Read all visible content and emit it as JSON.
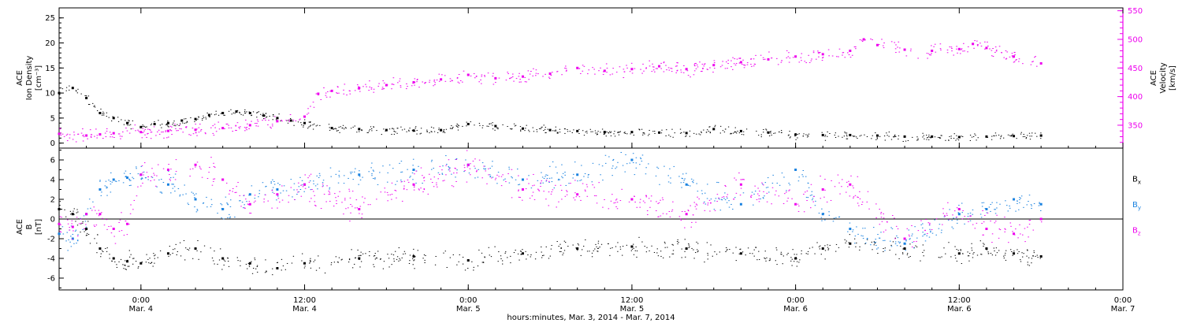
{
  "colors": {
    "density": "#000000",
    "velocity": "#ee00ee",
    "bx": "#000000",
    "by": "#1a82e0",
    "bz": "#ee00ee",
    "frame": "#000000",
    "velocity_axis": "#ee00ee"
  },
  "x_axis": {
    "title": "hours:minutes, Mar. 3, 2014 - Mar. 7, 2014",
    "range_hours": [
      -6,
      72
    ],
    "ticks": [
      {
        "hours": 0,
        "time": "0:00",
        "date": "Mar. 4"
      },
      {
        "hours": 12,
        "time": "12:00",
        "date": "Mar. 4"
      },
      {
        "hours": 24,
        "time": "0:00",
        "date": "Mar. 5"
      },
      {
        "hours": 36,
        "time": "12:00",
        "date": "Mar. 5"
      },
      {
        "hours": 48,
        "time": "0:00",
        "date": "Mar. 6"
      },
      {
        "hours": 60,
        "time": "12:00",
        "date": "Mar. 6"
      },
      {
        "hours": 72,
        "time": "0:00",
        "date": "Mar. 7"
      }
    ]
  },
  "chart_data": [
    {
      "type": "scatter",
      "panel": "plasma",
      "left_axis": {
        "label_lines": [
          "ACE",
          "Ion Density",
          "[cm⁻³]"
        ],
        "range": [
          -1,
          27
        ],
        "ticks": [
          0,
          5,
          10,
          15,
          20,
          25
        ]
      },
      "right_axis": {
        "label_lines": [
          "ACE",
          "Velocity",
          "[km/s]"
        ],
        "range": [
          310,
          555
        ],
        "ticks": [
          350,
          400,
          450,
          500,
          550
        ]
      },
      "series": [
        {
          "key": "density",
          "axis": "left",
          "x": [
            -6,
            -5,
            -4,
            -3,
            -2,
            -1,
            0,
            1,
            2,
            3,
            4,
            5,
            6,
            7,
            8,
            9,
            10,
            11,
            12,
            14,
            16,
            18,
            20,
            22,
            24,
            26,
            28,
            30,
            32,
            34,
            36,
            38,
            40,
            42,
            44,
            46,
            48,
            50,
            52,
            54,
            56,
            58,
            60,
            62,
            64,
            66
          ],
          "y": [
            10,
            11,
            9,
            6,
            5,
            4,
            3.2,
            3.8,
            4.0,
            4.5,
            4.8,
            5.6,
            6.0,
            6.3,
            6.0,
            5.5,
            5.0,
            4.5,
            4.0,
            3.0,
            2.8,
            2.6,
            2.5,
            2.6,
            3.8,
            3.4,
            2.9,
            2.6,
            2.4,
            2.2,
            2.2,
            2.1,
            2.0,
            2.8,
            2.4,
            2.1,
            1.7,
            1.6,
            1.6,
            1.5,
            1.3,
            1.3,
            1.2,
            1.3,
            1.4,
            1.5
          ]
        },
        {
          "key": "velocity",
          "axis": "right",
          "x": [
            -6,
            -4,
            -3,
            -2,
            0,
            2,
            4,
            6,
            8,
            10,
            12,
            13,
            14,
            16,
            18,
            20,
            22,
            24,
            26,
            28,
            30,
            32,
            34,
            36,
            38,
            40,
            42,
            44,
            46,
            48,
            50,
            52,
            53,
            54,
            56,
            58,
            60,
            61,
            62,
            64,
            66
          ],
          "y": [
            335,
            332,
            334,
            336,
            338,
            340,
            342,
            345,
            350,
            357,
            365,
            405,
            410,
            415,
            420,
            425,
            430,
            438,
            432,
            435,
            440,
            450,
            445,
            448,
            453,
            448,
            455,
            460,
            465,
            470,
            474,
            480,
            500,
            490,
            482,
            480,
            483,
            492,
            485,
            470,
            458
          ]
        }
      ]
    },
    {
      "type": "scatter",
      "panel": "magnetic field",
      "left_axis": {
        "label_lines": [
          "ACE",
          "B",
          "[nT]"
        ],
        "range": [
          -7.2,
          7.2
        ],
        "ticks": [
          -6,
          -4,
          -2,
          0,
          2,
          4,
          6
        ]
      },
      "legend": [
        "Bx",
        "By",
        "Bz"
      ],
      "series": [
        {
          "key": "bx",
          "x": [
            -6,
            -5,
            -4,
            -3,
            -2,
            -1,
            0,
            2,
            4,
            6,
            8,
            10,
            12,
            16,
            20,
            24,
            28,
            32,
            36,
            40,
            44,
            48,
            50,
            52,
            56,
            60,
            62,
            64,
            66
          ],
          "y": [
            1.0,
            0.5,
            -1.0,
            -3.0,
            -4.0,
            -4.3,
            -4.5,
            -3.5,
            -3.0,
            -4.0,
            -4.5,
            -5.0,
            -4.5,
            -4.0,
            -3.8,
            -4.2,
            -3.5,
            -3.0,
            -2.8,
            -3.0,
            -3.5,
            -4.0,
            -3.0,
            -2.5,
            -3.0,
            -3.5,
            -3.0,
            -3.5,
            -3.8
          ]
        },
        {
          "key": "by",
          "x": [
            -6,
            -5,
            -4,
            -3,
            -2,
            -1,
            0,
            2,
            4,
            6,
            8,
            10,
            12,
            16,
            20,
            24,
            28,
            32,
            36,
            40,
            44,
            48,
            50,
            52,
            56,
            60,
            62,
            64,
            66
          ],
          "y": [
            -1.5,
            -2.0,
            0.5,
            3.0,
            4.0,
            4.2,
            4.5,
            3.5,
            2.0,
            1.0,
            2.5,
            3.0,
            3.5,
            4.5,
            5.0,
            5.5,
            4.0,
            4.5,
            6.0,
            3.5,
            1.5,
            5.0,
            0.5,
            -1.0,
            -2.5,
            0.5,
            1.0,
            2.0,
            1.5
          ]
        },
        {
          "key": "bz",
          "x": [
            -6,
            -5,
            -4,
            -3,
            -2,
            -1,
            0,
            2,
            4,
            6,
            8,
            10,
            12,
            16,
            20,
            24,
            28,
            32,
            36,
            40,
            44,
            48,
            50,
            52,
            56,
            60,
            62,
            64,
            66
          ],
          "y": [
            -0.5,
            -0.8,
            0.5,
            0.5,
            -1.0,
            -0.5,
            4.5,
            5.0,
            5.5,
            4.0,
            1.5,
            2.5,
            3.5,
            1.0,
            3.5,
            5.5,
            3.0,
            2.5,
            2.0,
            0.5,
            3.5,
            1.5,
            3.0,
            3.5,
            -2.0,
            1.0,
            -1.0,
            -1.5,
            0.0
          ]
        }
      ]
    }
  ]
}
